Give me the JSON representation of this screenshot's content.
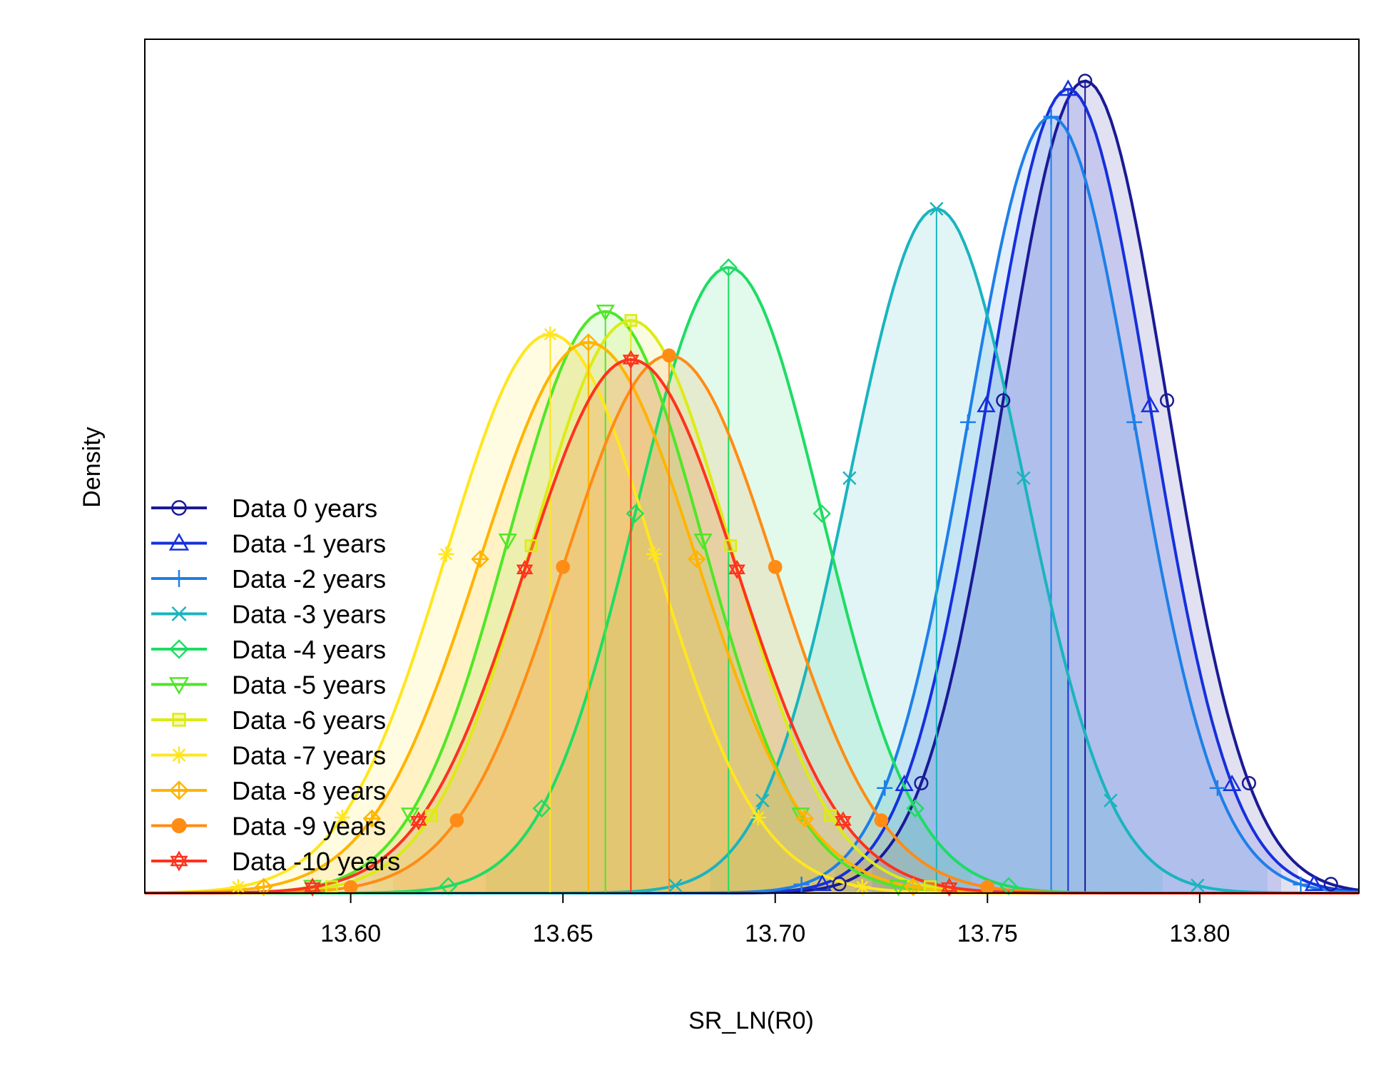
{
  "chart_data": {
    "type": "area",
    "title": "",
    "xlabel": "SR_LN(R0)",
    "ylabel": "Density",
    "xlim": [
      13.5515,
      13.8375
    ],
    "ylim": [
      0,
      1
    ],
    "x_ticks": [
      "13.60",
      "13.65",
      "13.70",
      "13.75",
      "13.80"
    ],
    "grid": false,
    "legend_position": "left",
    "series": [
      {
        "name": "Data 0 years",
        "color": "#1A1A96",
        "marker": "circle",
        "mean": 13.773,
        "sd": 0.0193,
        "peak": 0.997
      },
      {
        "name": "Data -1 years",
        "color": "#1530DC",
        "marker": "triangle-up",
        "mean": 13.769,
        "sd": 0.0193,
        "peak": 0.987
      },
      {
        "name": "Data -2 years",
        "color": "#1E7FE8",
        "marker": "plus",
        "mean": 13.765,
        "sd": 0.0196,
        "peak": 0.953
      },
      {
        "name": "Data -3 years",
        "color": "#1AB4BE",
        "marker": "cross",
        "mean": 13.738,
        "sd": 0.0205,
        "peak": 0.84
      },
      {
        "name": "Data -4 years",
        "color": "#1EDC64",
        "marker": "diamond",
        "mean": 13.689,
        "sd": 0.022,
        "peak": 0.768
      },
      {
        "name": "Data -5 years",
        "color": "#50E628",
        "marker": "triangle-down",
        "mean": 13.66,
        "sd": 0.023,
        "peak": 0.714
      },
      {
        "name": "Data -6 years",
        "color": "#DCEB14",
        "marker": "square",
        "mean": 13.666,
        "sd": 0.0235,
        "peak": 0.703
      },
      {
        "name": "Data -7 years",
        "color": "#FFE61E",
        "marker": "asterisk",
        "mean": 13.647,
        "sd": 0.0245,
        "peak": 0.686
      },
      {
        "name": "Data -8 years",
        "color": "#FFB400",
        "marker": "diamond-plus",
        "mean": 13.656,
        "sd": 0.0255,
        "peak": 0.676
      },
      {
        "name": "Data -9 years",
        "color": "#FF8C14",
        "marker": "circle-filled",
        "mean": 13.675,
        "sd": 0.025,
        "peak": 0.66
      },
      {
        "name": "Data -10 years",
        "color": "#FF321E",
        "marker": "hexagram",
        "mean": 13.666,
        "sd": 0.025,
        "peak": 0.655
      }
    ]
  }
}
